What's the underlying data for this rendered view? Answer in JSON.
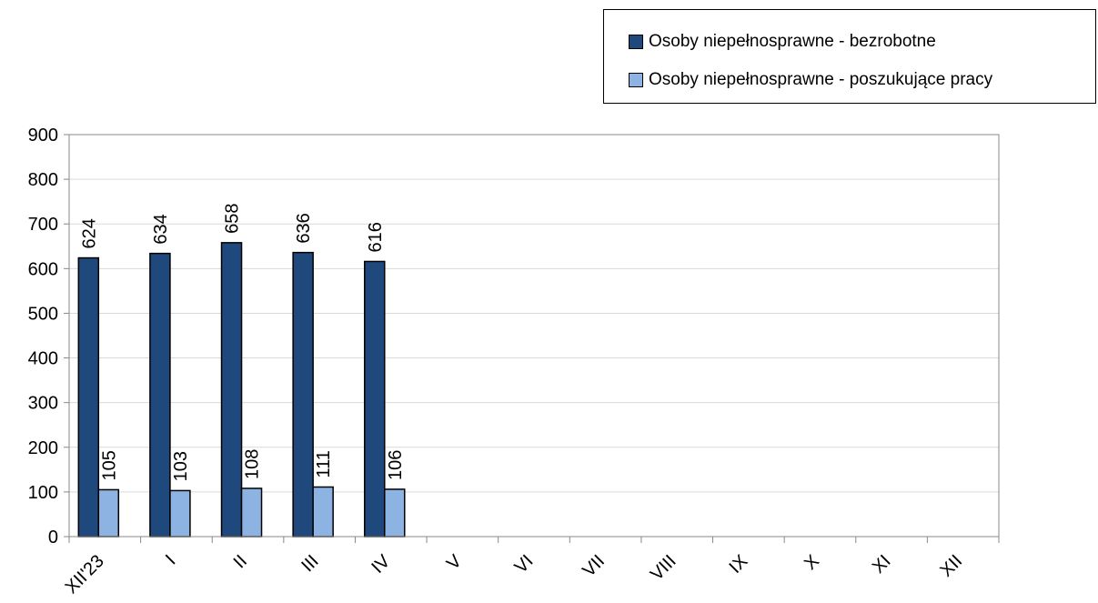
{
  "chart_data": {
    "type": "bar",
    "categories": [
      "XII'23",
      "I",
      "II",
      "III",
      "IV",
      "V",
      "VI",
      "VII",
      "VIII",
      "IX",
      "X",
      "XI",
      "XII"
    ],
    "series": [
      {
        "name": "Osoby niepełnosprawne - bezrobotne",
        "color": "#1F497D",
        "values": [
          624,
          634,
          658,
          636,
          616,
          null,
          null,
          null,
          null,
          null,
          null,
          null,
          null
        ]
      },
      {
        "name": "Osoby niepełnosprawne - poszukujące pracy",
        "color": "#8DB3E2",
        "values": [
          105,
          103,
          108,
          111,
          106,
          null,
          null,
          null,
          null,
          null,
          null,
          null,
          null
        ]
      }
    ],
    "ylim": [
      0,
      900
    ],
    "yticks": [
      0,
      100,
      200,
      300,
      400,
      500,
      600,
      700,
      800,
      900
    ],
    "grid": true,
    "legend": "top-right",
    "data_labels": true
  }
}
